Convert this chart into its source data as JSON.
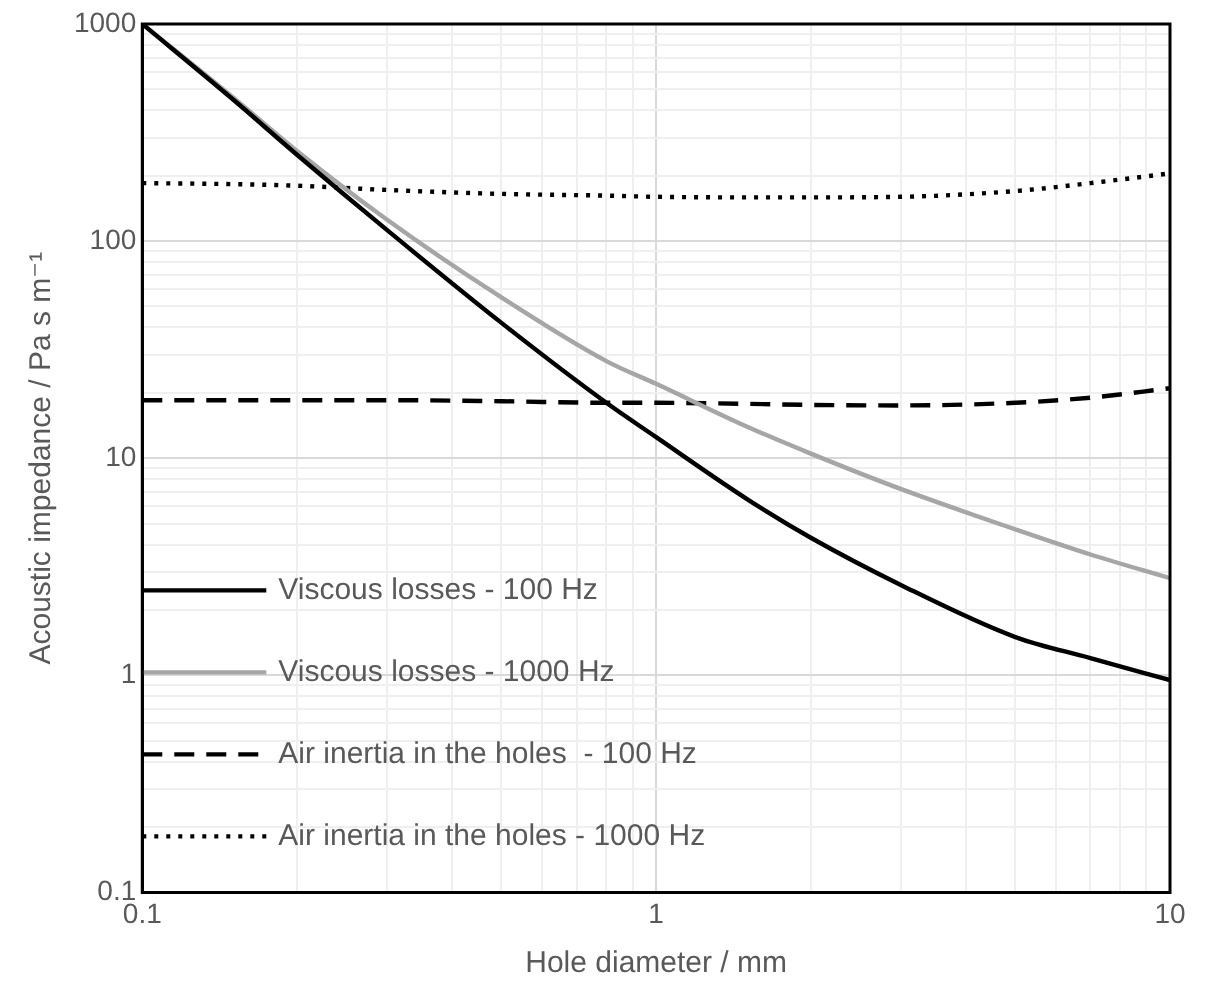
{
  "chart_data": {
    "type": "line",
    "xlabel": "Hole diameter / mm",
    "ylabel": "Acoustic impedance / Pa s m⁻¹",
    "log": "xy",
    "grid": true,
    "legend": "bottom left",
    "marker": "none",
    "xlim": [
      0.1,
      10
    ],
    "xticks": [
      0.1,
      {
        "value": 0.2,
        "label": null
      },
      {
        "value": 0.3,
        "label": null
      },
      {
        "value": 0.4,
        "label": null
      },
      {
        "value": 0.5,
        "label": null
      },
      {
        "value": 0.6,
        "label": null
      },
      {
        "value": 0.7,
        "label": null
      },
      {
        "value": 0.8,
        "label": null
      },
      {
        "value": 0.9,
        "label": null
      },
      1,
      {
        "value": 2,
        "label": null
      },
      {
        "value": 3,
        "label": null
      },
      {
        "value": 4,
        "label": null
      },
      {
        "value": 5,
        "label": null
      },
      {
        "value": 6,
        "label": null
      },
      {
        "value": 7,
        "label": null
      },
      {
        "value": 8,
        "label": null
      },
      {
        "value": 9,
        "label": null
      },
      10
    ],
    "ylim": [
      0.1,
      1000
    ],
    "yticks": [
      0.1,
      {
        "value": 0.2,
        "label": null
      },
      {
        "value": 0.3,
        "label": null
      },
      {
        "value": 0.4,
        "label": null
      },
      {
        "value": 0.5,
        "label": null
      },
      {
        "value": 0.6,
        "label": null
      },
      {
        "value": 0.7,
        "label": null
      },
      {
        "value": 0.8,
        "label": null
      },
      {
        "value": 0.9,
        "label": null
      },
      1,
      {
        "value": 2,
        "label": null
      },
      {
        "value": 3,
        "label": null
      },
      {
        "value": 4,
        "label": null
      },
      {
        "value": 5,
        "label": null
      },
      {
        "value": 6,
        "label": null
      },
      {
        "value": 7,
        "label": null
      },
      {
        "value": 8,
        "label": null
      },
      {
        "value": 9,
        "label": null
      },
      10,
      {
        "value": 20,
        "label": null
      },
      {
        "value": 30,
        "label": null
      },
      {
        "value": 40,
        "label": null
      },
      {
        "value": 50,
        "label": null
      },
      {
        "value": 60,
        "label": null
      },
      {
        "value": 70,
        "label": null
      },
      {
        "value": 80,
        "label": null
      },
      {
        "value": 90,
        "label": null
      },
      100,
      {
        "value": 200,
        "label": null
      },
      {
        "value": 300,
        "label": null
      },
      {
        "value": 400,
        "label": null
      },
      {
        "value": 500,
        "label": null
      },
      {
        "value": 600,
        "label": null
      },
      {
        "value": 700,
        "label": null
      },
      {
        "value": 800,
        "label": null
      },
      {
        "value": 900,
        "label": null
      },
      1000
    ],
    "x": [
      0.1,
      0.15,
      0.2,
      0.3,
      0.5,
      0.8,
      1,
      1.5,
      2,
      3,
      5,
      7,
      10
    ],
    "series": [
      {
        "name": "Viscous losses - 100 Hz",
        "color": "#000000",
        "line_style": "solid",
        "values": [
          1000,
          450,
          250,
          112,
          42,
          18,
          12.5,
          6.5,
          4.3,
          2.6,
          1.5,
          1.2,
          0.95
        ]
      },
      {
        "name": "Viscous losses - 1000 Hz",
        "color": "#a6a6a6",
        "line_style": "solid",
        "values": [
          1000,
          460,
          260,
          125,
          55,
          28,
          22,
          14,
          10.5,
          7.2,
          4.7,
          3.6,
          2.8
        ]
      },
      {
        "name": "Air inertia in the holes  - 100 Hz",
        "color": "#000000",
        "line_style": "dashed",
        "values": [
          18.5,
          18.5,
          18.5,
          18.5,
          18.3,
          18,
          18,
          17.8,
          17.6,
          17.5,
          18,
          19,
          21
        ]
      },
      {
        "name": "Air inertia in the holes - 1000 Hz",
        "color": "#000000",
        "line_style": "dotted",
        "values": [
          185,
          183,
          180,
          172,
          165,
          162,
          160,
          159,
          159,
          160,
          170,
          185,
          205
        ]
      }
    ]
  }
}
